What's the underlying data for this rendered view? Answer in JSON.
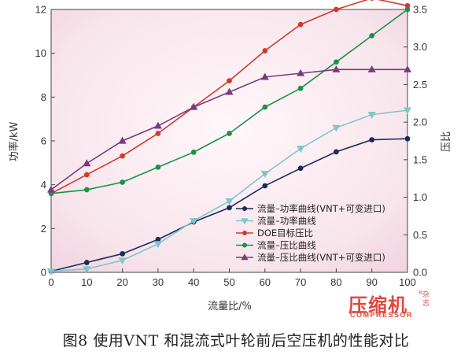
{
  "chart_data": {
    "type": "line",
    "x": [
      0,
      10,
      20,
      30,
      40,
      50,
      60,
      70,
      80,
      90,
      100
    ],
    "xlabel": "流量比/%",
    "ylabel_left": "功率/kW",
    "ylabel_right": "压比",
    "xlim": [
      0,
      100
    ],
    "ylim_left": [
      0,
      12
    ],
    "ylim_right": [
      0.0,
      3.5
    ],
    "x_ticks": [
      "0",
      "10",
      "20",
      "30",
      "40",
      "50",
      "60",
      "70",
      "80",
      "90",
      "100"
    ],
    "y_left_ticks": [
      "0",
      "2",
      "4",
      "6",
      "8",
      "10",
      "12"
    ],
    "y_right_ticks": [
      "0.0",
      "0.5",
      "1.0",
      "1.5",
      "2.0",
      "2.5",
      "3.0",
      "3.5"
    ],
    "legend_position": "lower-right",
    "series": [
      {
        "name": "流量–功率曲线(VNT+可变进口)",
        "axis": "left",
        "color": "#1a2a5c",
        "marker": "circle",
        "values": [
          0.05,
          0.45,
          0.85,
          1.5,
          2.3,
          2.95,
          3.95,
          4.75,
          5.5,
          6.05,
          6.1
        ]
      },
      {
        "name": "流量–功率曲线",
        "axis": "left",
        "color": "#7fc6c9",
        "marker": "triangle-down",
        "values": [
          0.05,
          0.15,
          0.55,
          1.3,
          2.35,
          3.25,
          4.5,
          5.65,
          6.6,
          7.2,
          7.4
        ]
      },
      {
        "name": "DOE目标压比",
        "axis": "right",
        "color": "#d03a2a",
        "marker": "circle",
        "values": [
          1.05,
          1.3,
          1.55,
          1.85,
          2.2,
          2.55,
          2.95,
          3.3,
          3.5,
          3.65,
          3.55
        ]
      },
      {
        "name": "流量–压比曲线",
        "axis": "right",
        "color": "#17944a",
        "marker": "circle",
        "values": [
          1.05,
          1.1,
          1.2,
          1.4,
          1.6,
          1.85,
          2.2,
          2.45,
          2.8,
          3.15,
          3.5
        ]
      },
      {
        "name": "流量–压比曲线(VNT+可变进口)",
        "axis": "right",
        "color": "#7a3a7e",
        "marker": "triangle-up",
        "values": [
          1.1,
          1.45,
          1.75,
          1.95,
          2.2,
          2.4,
          2.6,
          2.65,
          2.7,
          2.7,
          2.7
        ]
      }
    ],
    "background": "#f6dfe6",
    "grid": false
  },
  "caption": "图8 使用VNT 和混流式叶轮前后空压机的性能对比",
  "watermark": {
    "main": "压缩机",
    "side": "杂志",
    "sub": "COMPRESSOR",
    "reg": "®"
  }
}
